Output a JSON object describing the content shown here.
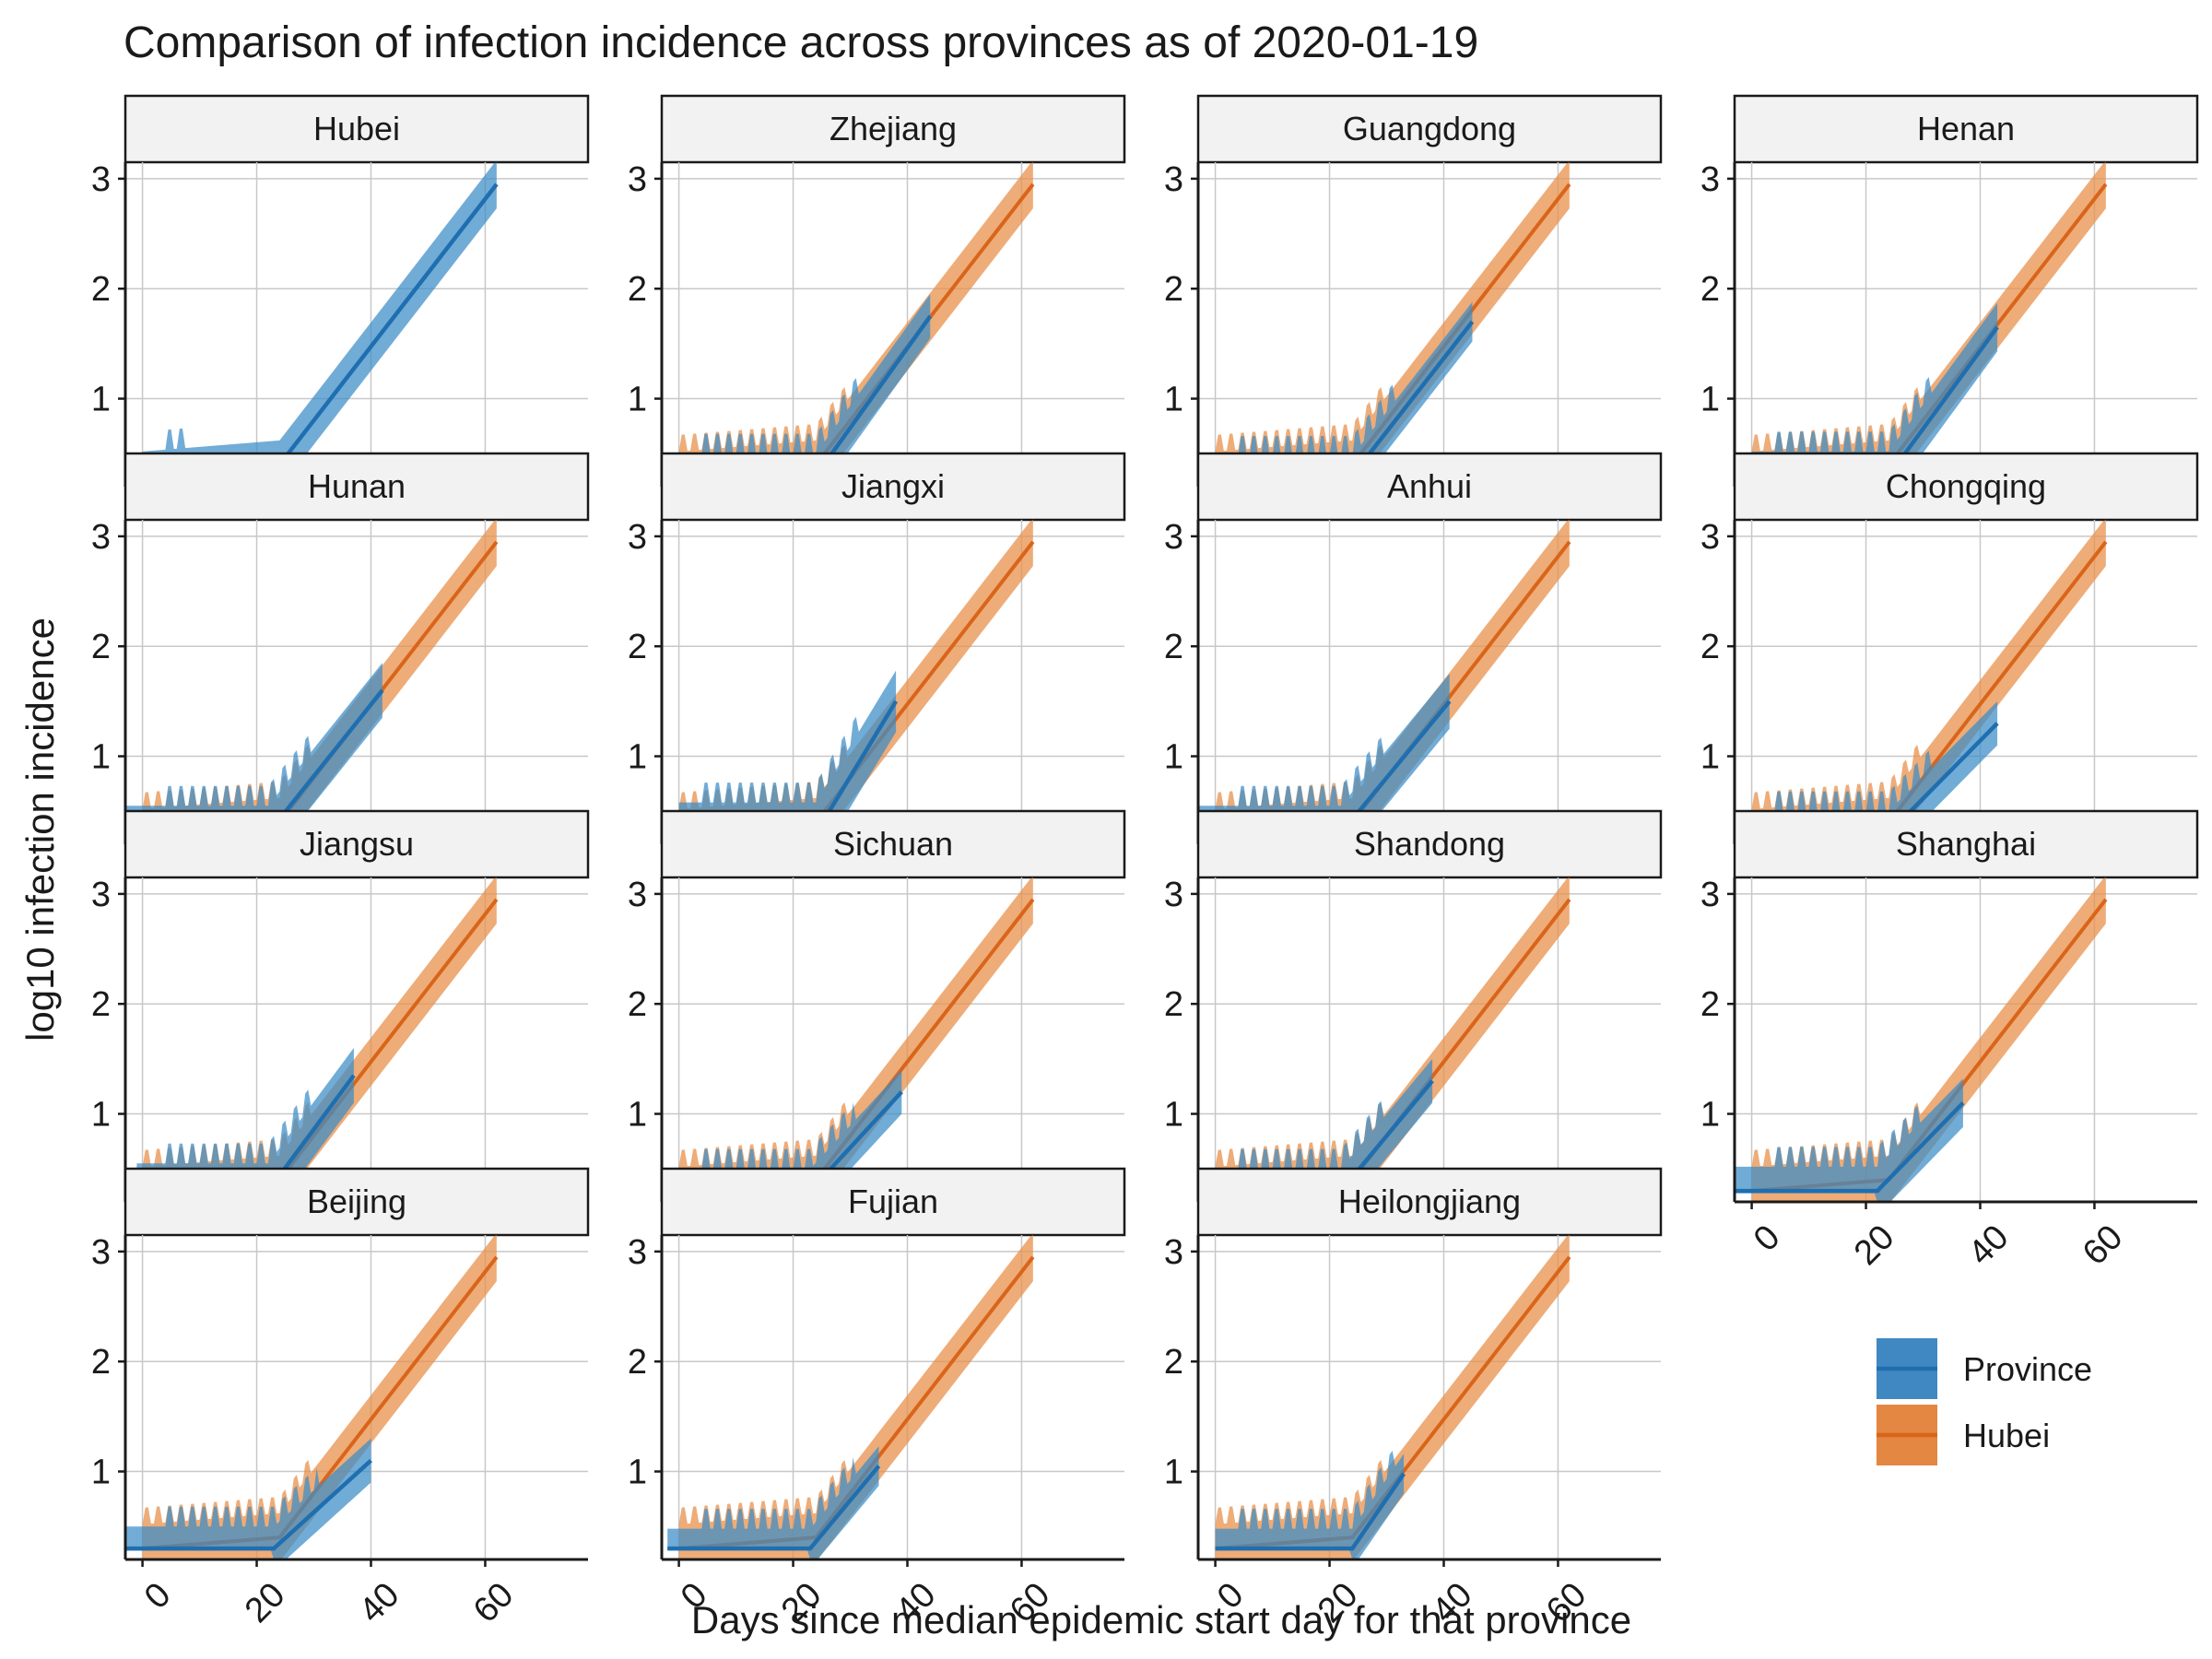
{
  "chart_data": {
    "type": "line",
    "title": "Comparison of infection incidence across provinces as of 2020-01-19",
    "xlabel": "Days since median epidemic start day for that province",
    "ylabel": "log10 infection incidence",
    "xlim": [
      -3,
      78
    ],
    "ylim": [
      0.2,
      3.15
    ],
    "x_ticks": [
      0,
      20,
      40,
      60
    ],
    "y_ticks": [
      1,
      2,
      3
    ],
    "grid": true,
    "facets": [
      {
        "name": "Hubei",
        "end": 62,
        "start": 0,
        "rise": 0,
        "base": 0.3,
        "w": 0.22,
        "final": 2.95
      },
      {
        "name": "Zhejiang",
        "end": 44,
        "start": 0,
        "rise": 24,
        "base": 0.3,
        "w": 0.2,
        "final": 1.75
      },
      {
        "name": "Guangdong",
        "end": 45,
        "start": 0,
        "rise": 24,
        "base": 0.3,
        "w": 0.18,
        "final": 1.7
      },
      {
        "name": "Henan",
        "end": 43,
        "start": 0,
        "rise": 24,
        "base": 0.3,
        "w": 0.22,
        "final": 1.65
      },
      {
        "name": "Hunan",
        "end": 42,
        "start": -3,
        "rise": 22,
        "base": 0.3,
        "w": 0.25,
        "final": 1.6
      },
      {
        "name": "Jiangxi",
        "end": 38,
        "start": 0,
        "rise": 24,
        "base": 0.3,
        "w": 0.28,
        "final": 1.5
      },
      {
        "name": "Anhui",
        "end": 41,
        "start": -3,
        "rise": 22,
        "base": 0.3,
        "w": 0.25,
        "final": 1.5
      },
      {
        "name": "Chongqing",
        "end": 43,
        "start": 0,
        "rise": 24,
        "base": 0.3,
        "w": 0.2,
        "final": 1.3
      },
      {
        "name": "Jiangsu",
        "end": 37,
        "start": -1,
        "rise": 22,
        "base": 0.3,
        "w": 0.25,
        "final": 1.35
      },
      {
        "name": "Sichuan",
        "end": 39,
        "start": 0,
        "rise": 23,
        "base": 0.3,
        "w": 0.2,
        "final": 1.2
      },
      {
        "name": "Shandong",
        "end": 38,
        "start": -3,
        "rise": 22,
        "base": 0.3,
        "w": 0.2,
        "final": 1.3
      },
      {
        "name": "Shanghai",
        "end": 37,
        "start": -3,
        "rise": 22,
        "base": 0.3,
        "w": 0.22,
        "final": 1.1
      },
      {
        "name": "Beijing",
        "end": 40,
        "start": -3,
        "rise": 23,
        "base": 0.3,
        "w": 0.2,
        "final": 1.1
      },
      {
        "name": "Fujian",
        "end": 35,
        "start": -2,
        "rise": 23,
        "base": 0.3,
        "w": 0.18,
        "final": 1.05
      },
      {
        "name": "Heilongjiang",
        "end": 33,
        "start": 0,
        "rise": 24,
        "base": 0.3,
        "w": 0.18,
        "final": 0.98
      }
    ],
    "hubei_reference": {
      "end": 62,
      "final": 2.95,
      "w": 0.22
    },
    "legend": [
      {
        "label": "Province",
        "color": "#2b7bba"
      },
      {
        "label": "Hubei",
        "color": "#e07a2e"
      }
    ],
    "colors": {
      "province_line": "#1f6fb0",
      "province_band": "#3a8cc8",
      "hubei_line": "#d9651a",
      "hubei_band": "#e8904b"
    }
  }
}
